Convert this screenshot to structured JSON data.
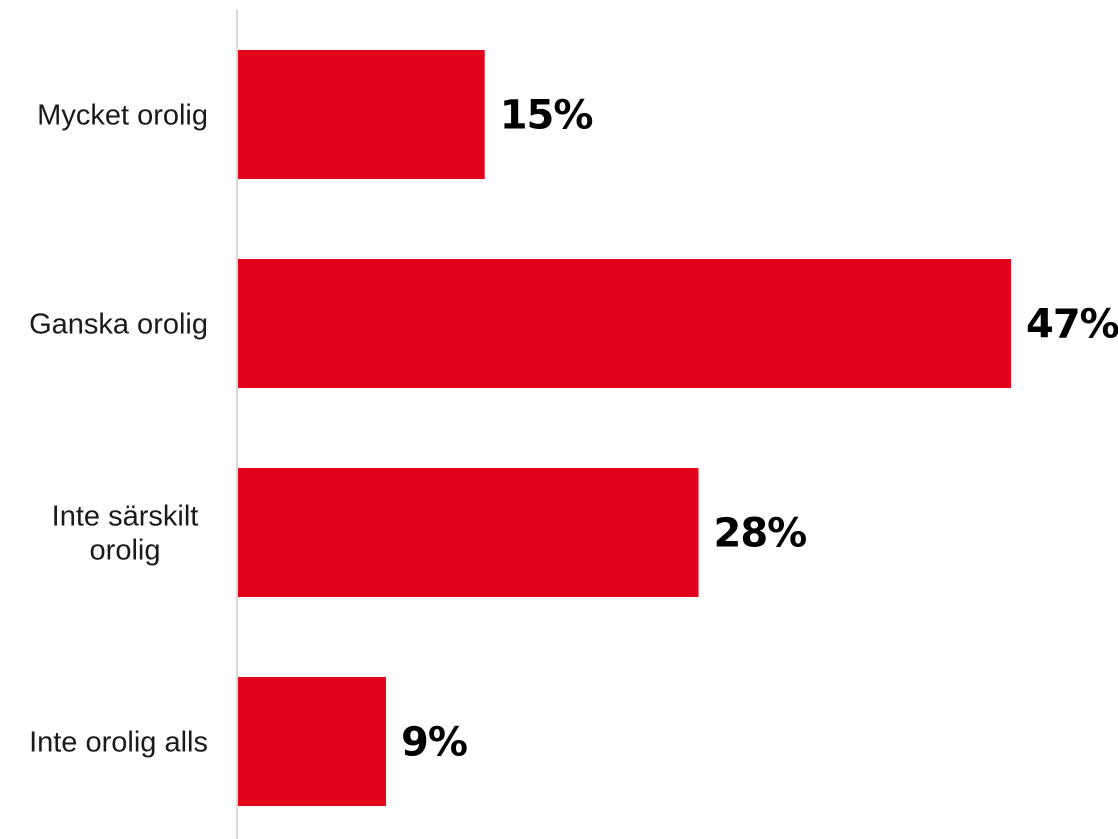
{
  "chart_data": {
    "type": "bar",
    "orientation": "horizontal",
    "categories": [
      "Mycket orolig",
      "Ganska orolig",
      "Inte särskilt orolig",
      "Inte orolig alls"
    ],
    "category_lines": [
      [
        "Mycket orolig"
      ],
      [
        "Ganska orolig"
      ],
      [
        "Inte särskilt",
        "orolig"
      ],
      [
        "Inte orolig alls"
      ]
    ],
    "values": [
      15,
      47,
      28,
      9
    ],
    "value_labels": [
      "15%",
      "47%",
      "28%",
      "9%"
    ],
    "xlim": [
      0,
      47
    ],
    "grid": false,
    "legend": false,
    "title": "",
    "xlabel": "",
    "ylabel": ""
  },
  "colors": {
    "bar": "#e2001a",
    "axis": "#d9d9d9",
    "category_text": "#1a1a1a",
    "value_text": "#000000"
  }
}
